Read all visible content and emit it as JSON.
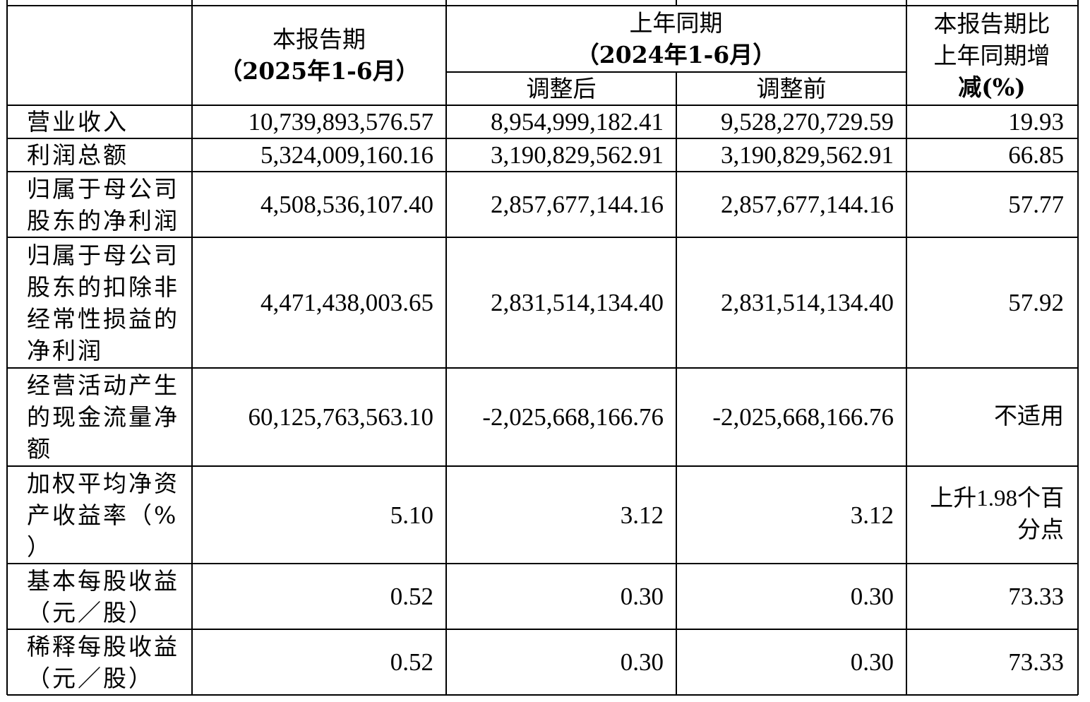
{
  "header": {
    "current_period_line1": "本报告期",
    "current_period_line2": "（2025年1-6月）",
    "prior_period_line1": "上年同期",
    "prior_period_line2": "（2024年1-6月）",
    "adjusted_after": "调整后",
    "adjusted_before": "调整前",
    "change_line1": "本报告期比",
    "change_line2": "上年同期增",
    "change_line3": "减(%)"
  },
  "rows": [
    {
      "label": [
        "营业收入"
      ],
      "current": "10,739,893,576.57",
      "after": "8,954,999,182.41",
      "before": "9,528,270,729.59",
      "change": [
        "19.93"
      ]
    },
    {
      "label": [
        "利润总额"
      ],
      "current": "5,324,009,160.16",
      "after": "3,190,829,562.91",
      "before": "3,190,829,562.91",
      "change": [
        "66.85"
      ]
    },
    {
      "label": [
        "归属于母公司",
        "股东的净利润"
      ],
      "current": "4,508,536,107.40",
      "after": "2,857,677,144.16",
      "before": "2,857,677,144.16",
      "change": [
        "57.77"
      ]
    },
    {
      "label": [
        "归属于母公司",
        "股东的扣除非",
        "经常性损益的",
        "净利润"
      ],
      "current": "4,471,438,003.65",
      "after": "2,831,514,134.40",
      "before": "2,831,514,134.40",
      "change": [
        "57.92"
      ]
    },
    {
      "label": [
        "经营活动产生",
        "的现金流量净",
        "额"
      ],
      "current": "60,125,763,563.10",
      "after": "-2,025,668,166.76",
      "before": "-2,025,668,166.76",
      "change": [
        "不适用"
      ]
    },
    {
      "label": [
        "加权平均净资",
        "产收益率（%",
        "）"
      ],
      "current": "5.10",
      "after": "3.12",
      "before": "3.12",
      "change": [
        "上升1.98个百",
        "分点"
      ]
    },
    {
      "label": [
        "基本每股收益",
        "（元／股）"
      ],
      "current": "0.52",
      "after": "0.30",
      "before": "0.30",
      "change": [
        "73.33"
      ]
    },
    {
      "label": [
        "稀释每股收益",
        "（元／股）"
      ],
      "current": "0.52",
      "after": "0.30",
      "before": "0.30",
      "change": [
        "73.33"
      ]
    }
  ]
}
